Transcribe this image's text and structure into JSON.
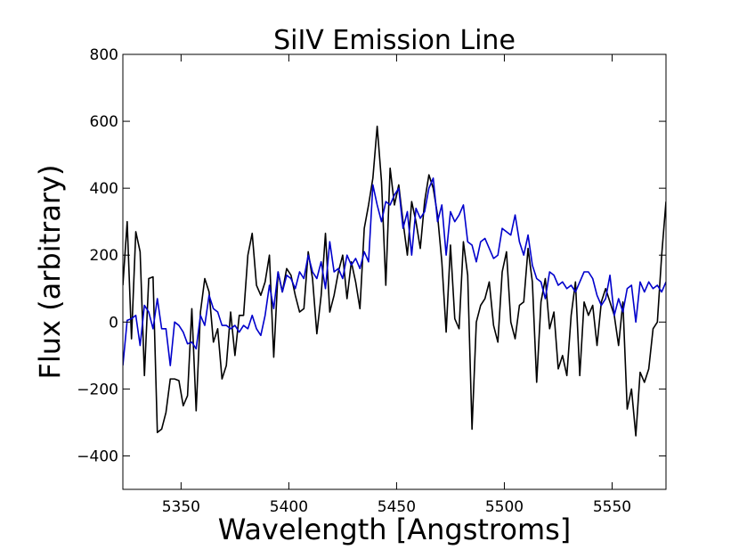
{
  "chart_data": {
    "type": "line",
    "title": "SiIV Emission Line",
    "xlabel": "Wavelength [Angstroms]",
    "ylabel": "Flux (arbitrary)",
    "x": [
      5323,
      5325,
      5327,
      5329,
      5331,
      5333,
      5335,
      5337,
      5339,
      5341,
      5343,
      5345,
      5347,
      5349,
      5351,
      5353,
      5355,
      5357,
      5359,
      5361,
      5363,
      5365,
      5367,
      5369,
      5371,
      5373,
      5375,
      5377,
      5379,
      5381,
      5383,
      5385,
      5387,
      5389,
      5391,
      5393,
      5395,
      5397,
      5399,
      5401,
      5403,
      5405,
      5407,
      5409,
      5411,
      5413,
      5415,
      5417,
      5419,
      5421,
      5423,
      5425,
      5427,
      5429,
      5431,
      5433,
      5435,
      5437,
      5439,
      5441,
      5443,
      5445,
      5447,
      5449,
      5451,
      5453,
      5455,
      5457,
      5459,
      5461,
      5463,
      5465,
      5467,
      5469,
      5471,
      5473,
      5475,
      5477,
      5479,
      5481,
      5483,
      5485,
      5487,
      5489,
      5491,
      5493,
      5495,
      5497,
      5499,
      5501,
      5503,
      5505,
      5507,
      5509,
      5511,
      5513,
      5515,
      5517,
      5519,
      5521,
      5523,
      5525,
      5527,
      5529,
      5531,
      5533,
      5535,
      5537,
      5539,
      5541,
      5543,
      5545,
      5547,
      5549,
      5551,
      5553,
      5555,
      5557,
      5559,
      5561,
      5563,
      5565,
      5567,
      5569,
      5571,
      5573,
      5575
    ],
    "series": [
      {
        "color": "#000000",
        "values": [
          110,
          300,
          -50,
          270,
          210,
          -160,
          130,
          135,
          -330,
          -320,
          -270,
          -170,
          -170,
          -175,
          -250,
          -220,
          40,
          -265,
          30,
          130,
          90,
          -60,
          -20,
          -170,
          -130,
          30,
          -100,
          20,
          20,
          200,
          265,
          110,
          80,
          120,
          200,
          -105,
          150,
          90,
          160,
          140,
          80,
          30,
          40,
          210,
          130,
          -35,
          80,
          265,
          30,
          80,
          150,
          200,
          70,
          180,
          120,
          40,
          280,
          350,
          430,
          585,
          420,
          110,
          460,
          350,
          410,
          300,
          200,
          360,
          300,
          220,
          360,
          440,
          400,
          320,
          180,
          -30,
          230,
          10,
          -20,
          240,
          140,
          -320,
          0,
          50,
          70,
          120,
          -10,
          -60,
          150,
          210,
          0,
          -50,
          50,
          60,
          220,
          120,
          -180,
          60,
          130,
          -20,
          30,
          -140,
          -100,
          -160,
          20,
          120,
          -160,
          60,
          20,
          50,
          -70,
          60,
          100,
          60,
          20,
          -70,
          60,
          -260,
          -200,
          -340,
          -150,
          -180,
          -140,
          -20,
          0,
          200,
          360
        ]
      },
      {
        "color": "#0000cc",
        "values": [
          -130,
          5,
          10,
          20,
          -70,
          50,
          30,
          -20,
          70,
          -20,
          -20,
          -130,
          0,
          -10,
          -30,
          -65,
          -60,
          -80,
          20,
          -10,
          80,
          40,
          30,
          -10,
          -10,
          -20,
          -10,
          -30,
          -10,
          -20,
          20,
          -20,
          -40,
          20,
          110,
          40,
          150,
          90,
          140,
          130,
          100,
          150,
          130,
          200,
          150,
          130,
          180,
          100,
          240,
          150,
          160,
          130,
          200,
          170,
          190,
          160,
          210,
          180,
          410,
          350,
          300,
          360,
          350,
          380,
          400,
          280,
          330,
          200,
          340,
          310,
          330,
          400,
          430,
          300,
          350,
          200,
          330,
          300,
          320,
          350,
          240,
          230,
          180,
          240,
          250,
          220,
          190,
          200,
          280,
          270,
          260,
          320,
          240,
          200,
          260,
          170,
          130,
          120,
          70,
          150,
          140,
          110,
          120,
          100,
          110,
          90,
          120,
          150,
          150,
          130,
          80,
          50,
          70,
          140,
          20,
          70,
          30,
          100,
          110,
          0,
          120,
          90,
          120,
          100,
          110,
          90,
          120
        ]
      }
    ],
    "xlim": [
      5323,
      5575
    ],
    "xticks": [
      5350,
      5400,
      5450,
      5500,
      5550
    ],
    "ylim": [
      -500,
      800
    ],
    "yticks": [
      -400,
      -200,
      0,
      200,
      400,
      600,
      800
    ]
  }
}
